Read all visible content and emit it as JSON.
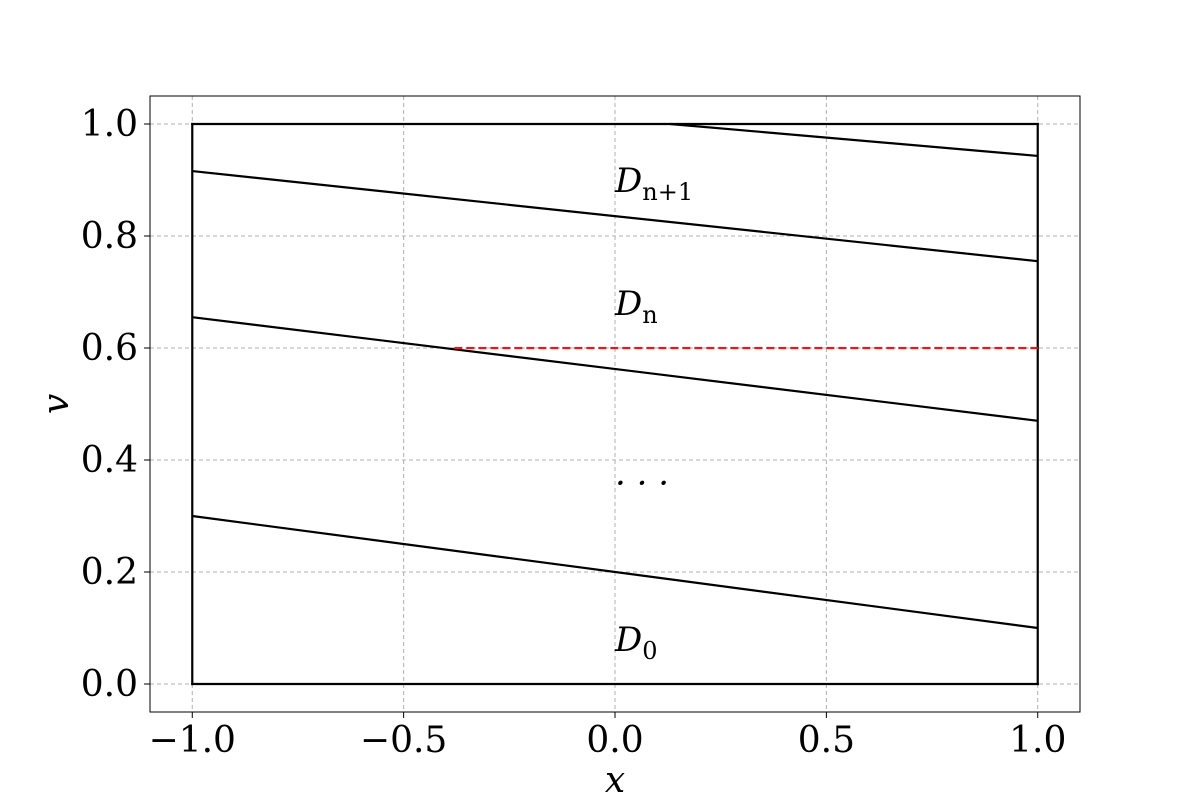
{
  "chart_data": {
    "type": "line",
    "xlabel": "x",
    "ylabel": "v",
    "xlim": [
      -1.1,
      1.1
    ],
    "ylim": [
      -0.05,
      1.05
    ],
    "x_ticks": [
      -1.0,
      -0.5,
      0.0,
      0.5,
      1.0
    ],
    "x_tick_labels": [
      "−1.0",
      "−0.5",
      "0.0",
      "0.5",
      "1.0"
    ],
    "y_ticks": [
      0.0,
      0.2,
      0.4,
      0.6,
      0.8,
      1.0
    ],
    "y_tick_labels": [
      "0.0",
      "0.2",
      "0.4",
      "0.6",
      "0.8",
      "1.0"
    ],
    "grid": true,
    "boundary": {
      "color": "#000000",
      "segments": [
        {
          "x": [
            -1.0,
            1.0
          ],
          "y": [
            0.0,
            0.0
          ]
        },
        {
          "x": [
            -1.0,
            1.0
          ],
          "y": [
            1.0,
            1.0
          ]
        },
        {
          "x": [
            -1.0,
            -1.0
          ],
          "y": [
            0.0,
            1.0
          ]
        },
        {
          "x": [
            1.0,
            1.0
          ],
          "y": [
            0.0,
            1.0
          ]
        }
      ]
    },
    "series": [
      {
        "x": [
          -1.0,
          1.0
        ],
        "y": [
          0.3,
          0.1
        ],
        "color": "#000000",
        "style": "solid"
      },
      {
        "x": [
          -1.0,
          1.0
        ],
        "y": [
          0.655,
          0.47
        ],
        "color": "#000000",
        "style": "solid"
      },
      {
        "x": [
          -1.0,
          1.0
        ],
        "y": [
          0.916,
          0.755
        ],
        "color": "#000000",
        "style": "solid"
      },
      {
        "x": [
          0.13,
          1.0
        ],
        "y": [
          1.0,
          0.943
        ],
        "color": "#000000",
        "style": "solid"
      },
      {
        "x": [
          -0.38,
          1.0
        ],
        "y": [
          0.6,
          0.6
        ],
        "color": "#e31a1c",
        "style": "dashed"
      }
    ],
    "annotations": [
      {
        "main": "D",
        "sub": "n+1",
        "x": 0.0,
        "y": 0.9
      },
      {
        "main": "D",
        "sub": "n",
        "x": 0.0,
        "y": 0.68
      },
      {
        "main": "· · ·",
        "sub": "",
        "x": 0.0,
        "y": 0.36
      },
      {
        "main": "D",
        "sub": "0",
        "x": 0.0,
        "y": 0.08
      }
    ]
  }
}
